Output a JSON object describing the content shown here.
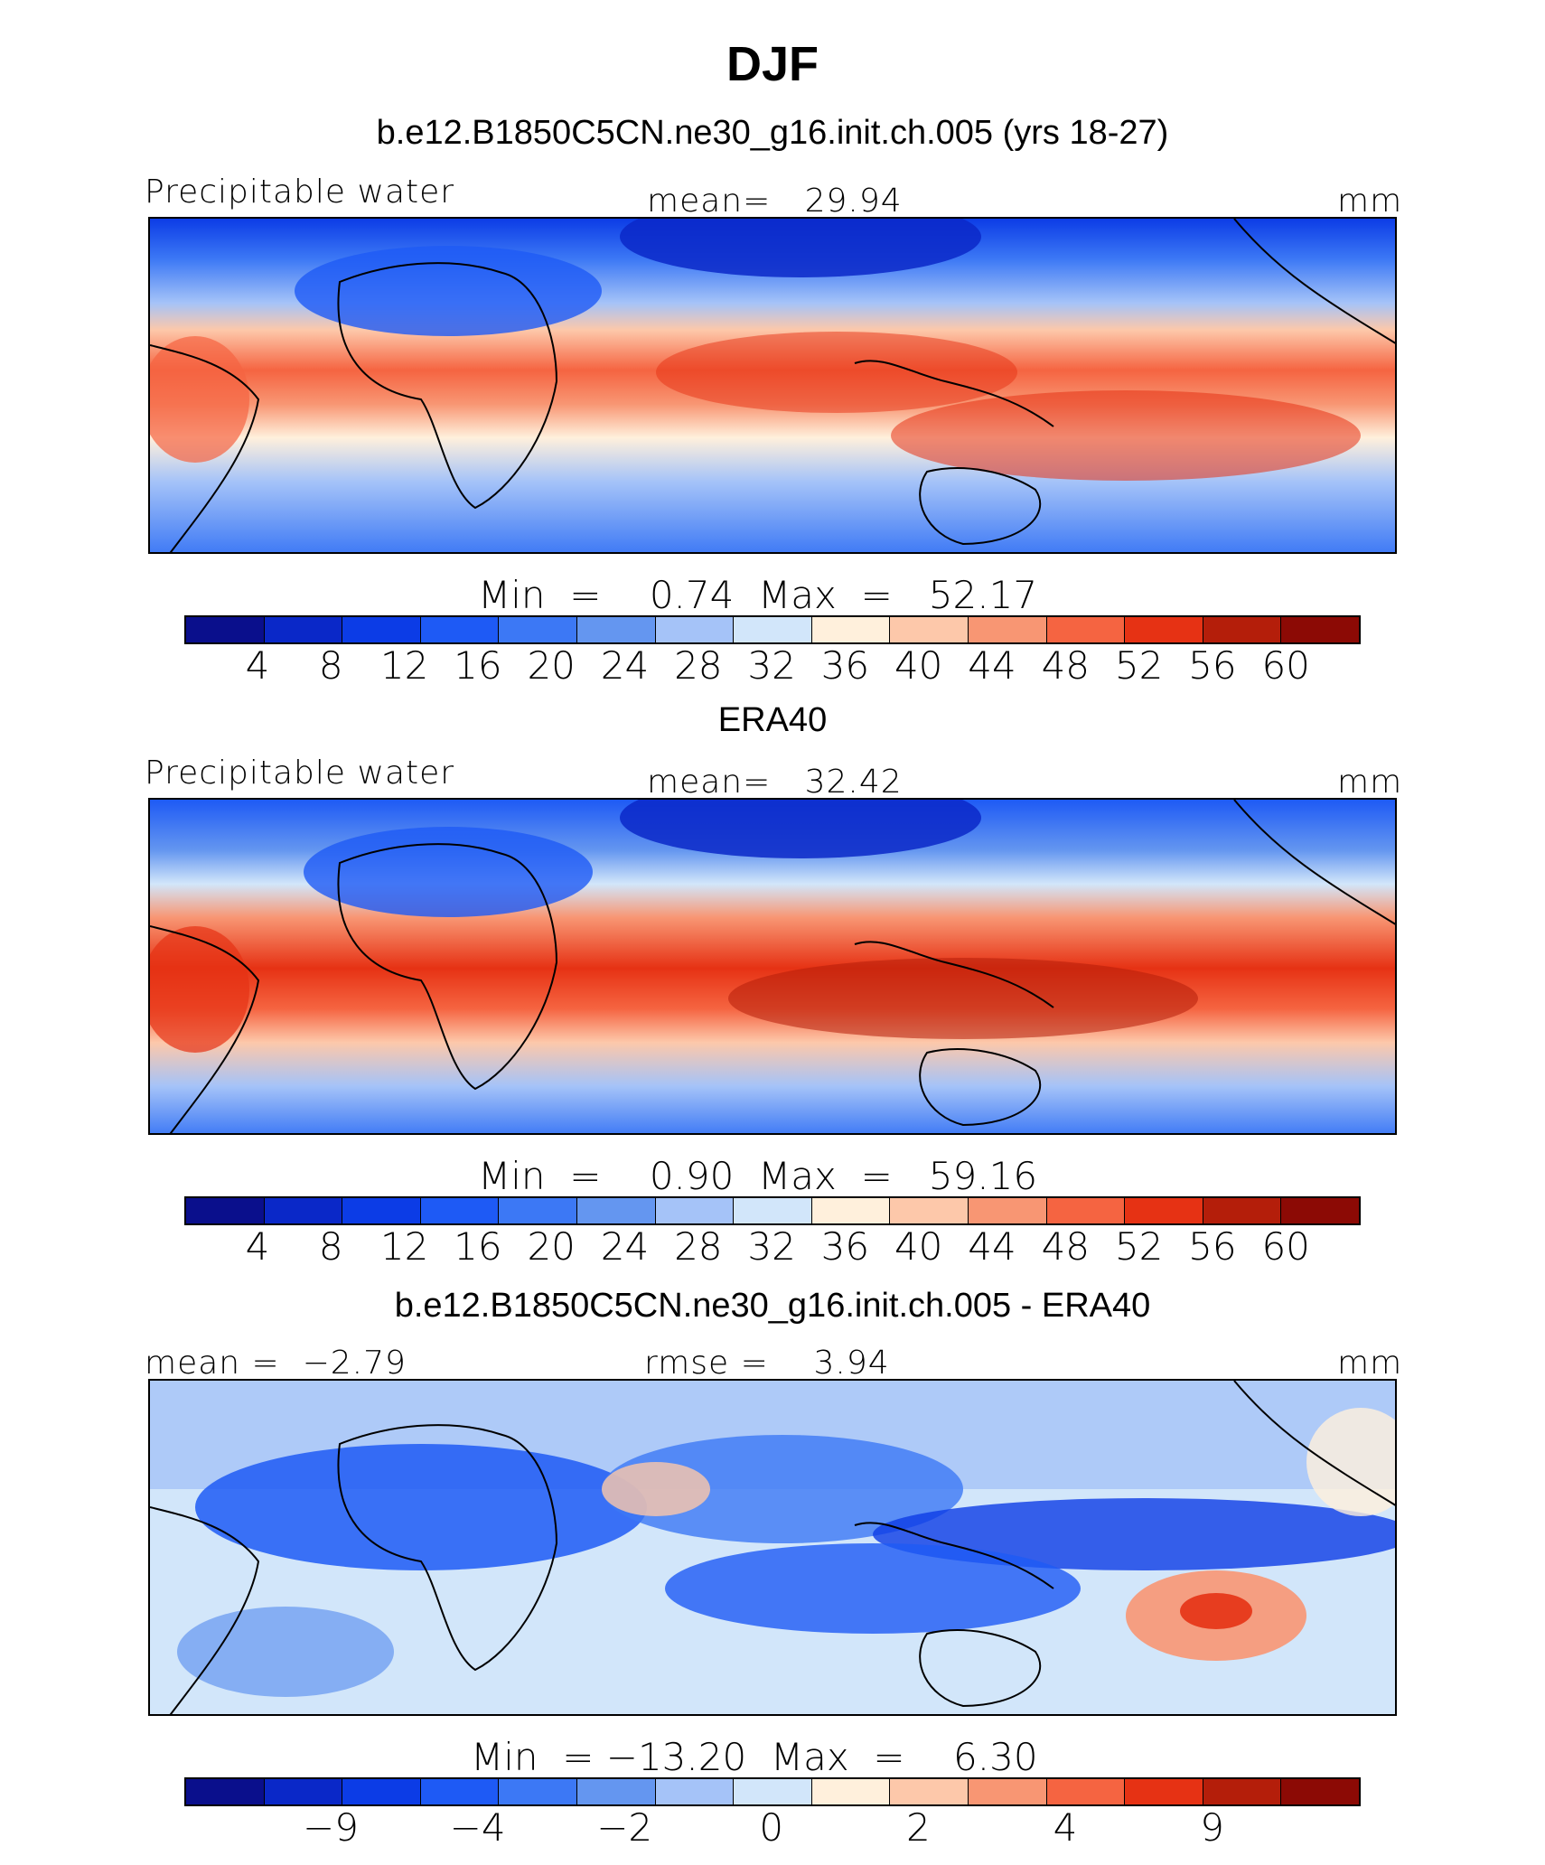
{
  "title": "DJF",
  "panels": [
    {
      "heading": "b.e12.B1850C5CN.ne30_g16.init.ch.005 (yrs 18-27)",
      "left_label": "Precipitable water",
      "center_label": "mean=   29.94",
      "right_label": "mm",
      "minmax": "Min  =    0.74  Max  =   52.17",
      "colorbar_ticks": [
        "4",
        "8",
        "12",
        "16",
        "20",
        "24",
        "28",
        "32",
        "36",
        "40",
        "44",
        "48",
        "52",
        "56",
        "60"
      ]
    },
    {
      "heading": "ERA40",
      "left_label": "Precipitable water",
      "center_label": "mean=   32.42",
      "right_label": "mm",
      "minmax": "Min  =    0.90  Max  =   59.16",
      "colorbar_ticks": [
        "4",
        "8",
        "12",
        "16",
        "20",
        "24",
        "28",
        "32",
        "36",
        "40",
        "44",
        "48",
        "52",
        "56",
        "60"
      ]
    },
    {
      "heading": "b.e12.B1850C5CN.ne30_g16.init.ch.005 - ERA40",
      "left_label": "mean =  −2.79",
      "center_label": "rmse =    3.94",
      "right_label": "mm",
      "minmax": "Min  = −13.20  Max  =    6.30",
      "colorbar_ticks": [
        "−9",
        "−4",
        "−2",
        "0",
        "2",
        "4",
        "9"
      ]
    }
  ],
  "colorbar_colors": [
    "#0a0f8c",
    "#0a28c8",
    "#0c3ce6",
    "#1e5af5",
    "#3c78f5",
    "#6496f0",
    "#a5c3f8",
    "#d2e6fa",
    "#fff0dc",
    "#fdc8aa",
    "#f89673",
    "#f56441",
    "#e63214",
    "#b41e0a",
    "#8c0a05"
  ]
}
